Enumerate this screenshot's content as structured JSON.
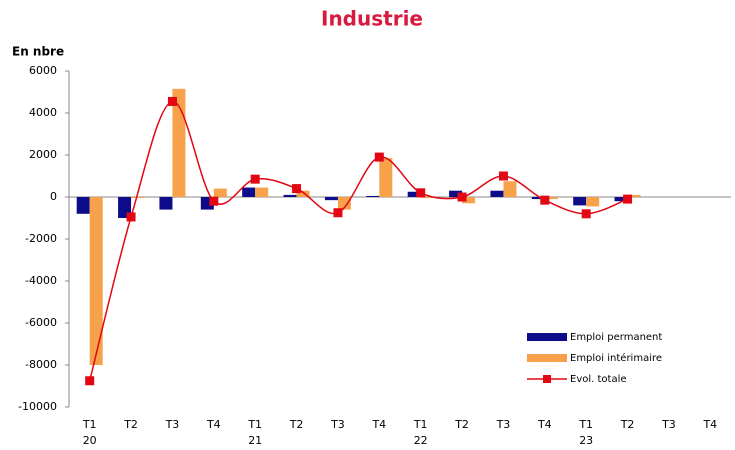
{
  "chart_data": {
    "type": "bar_line",
    "title": "Industrie",
    "y_axis_label": "En nbre",
    "categories": [
      "T1",
      "T2",
      "T3",
      "T4",
      "T1",
      "T2",
      "T3",
      "T4",
      "T1",
      "T2",
      "T3",
      "T4",
      "T1",
      "T2",
      "T3",
      "T4"
    ],
    "years": [
      "20",
      null,
      null,
      null,
      "21",
      null,
      null,
      null,
      "22",
      null,
      null,
      null,
      "23",
      null,
      null,
      null
    ],
    "series": [
      {
        "name": "Emploi permanent",
        "type": "bar",
        "color": "#0d0d8a",
        "values": [
          -800,
          -1000,
          -600,
          -600,
          450,
          100,
          -150,
          50,
          250,
          300,
          300,
          -100,
          -400,
          -200,
          null,
          null
        ]
      },
      {
        "name": "Emploi intérimaire",
        "type": "bar",
        "color": "#f7a24a",
        "values": [
          -8000,
          -50,
          5150,
          400,
          450,
          300,
          -600,
          1850,
          -50,
          -300,
          750,
          -100,
          -450,
          100,
          null,
          null
        ]
      },
      {
        "name": "Evol. totale",
        "type": "line",
        "color": "#e30613",
        "smooth": true,
        "values": [
          -8750,
          -950,
          4550,
          -200,
          850,
          400,
          -750,
          1900,
          200,
          0,
          1000,
          -150,
          -800,
          -100,
          null,
          null
        ]
      }
    ],
    "ylim": [
      -10000,
      6000
    ],
    "yticks": [
      -10000,
      -8000,
      -6000,
      -4000,
      -2000,
      0,
      2000,
      4000,
      6000
    ],
    "legend": "lower right",
    "grid": false
  }
}
